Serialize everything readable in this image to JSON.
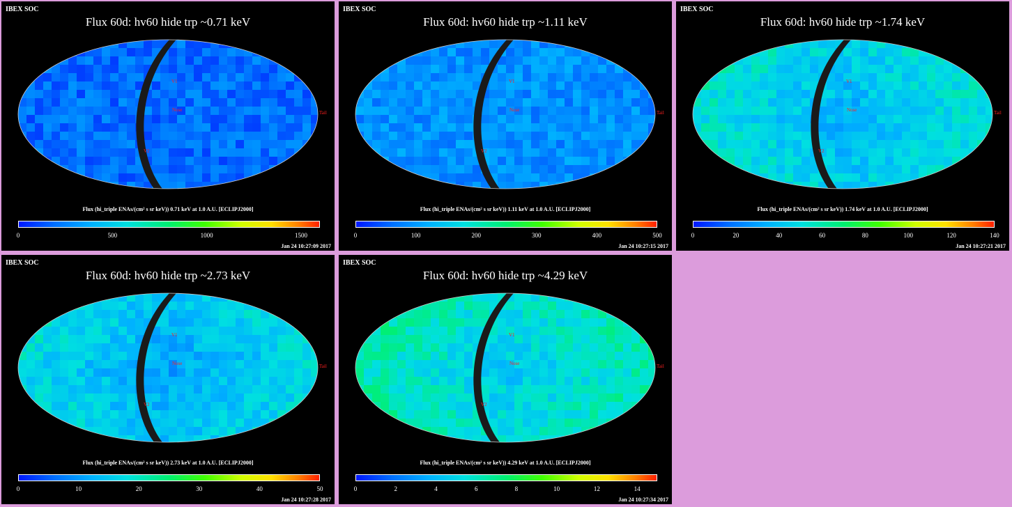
{
  "panels": [
    {
      "header": "IBEX SOC",
      "title": "Flux   60d: hv60 hide trp ~0.71 keV",
      "caption": "Flux (hi_triple ENAs/(cm² s sr keV))  0.71 keV at 1.0 A.U. [ECLIPJ2000]",
      "ticks": [
        "0",
        "500",
        "1000",
        "1500"
      ],
      "tick_values": [
        0,
        500,
        1000,
        1500
      ],
      "max": 1600,
      "date": "Jan 24 10:27:09 2017",
      "mean_level": 0.12
    },
    {
      "header": "IBEX SOC",
      "title": "Flux   60d: hv60 hide trp ~1.11 keV",
      "caption": "Flux (hi_triple ENAs/(cm² s sr keV))  1.11 keV at 1.0 A.U. [ECLIPJ2000]",
      "ticks": [
        "0",
        "100",
        "200",
        "300",
        "400",
        "500"
      ],
      "tick_values": [
        0,
        100,
        200,
        300,
        400,
        500
      ],
      "max": 500,
      "date": "Jan 24 10:27:15 2017",
      "mean_level": 0.18
    },
    {
      "header": "IBEX SOC",
      "title": "Flux   60d: hv60 hide trp ~1.74 keV",
      "caption": "Flux (hi_triple ENAs/(cm² s sr keV))  1.74 keV at 1.0 A.U. [ECLIPJ2000]",
      "ticks": [
        "0",
        "20",
        "40",
        "60",
        "80",
        "100",
        "120",
        "140"
      ],
      "tick_values": [
        0,
        20,
        40,
        60,
        80,
        100,
        120,
        140
      ],
      "max": 140,
      "date": "Jan 24 10:27:21 2017",
      "mean_level": 0.25
    },
    {
      "header": "IBEX SOC",
      "title": "Flux   60d: hv60 hide trp ~2.73 keV",
      "caption": "Flux (hi_triple ENAs/(cm² s sr keV))  2.73 keV at 1.0 A.U. [ECLIPJ2000]",
      "ticks": [
        "0",
        "10",
        "20",
        "30",
        "40",
        "50"
      ],
      "tick_values": [
        0,
        10,
        20,
        30,
        40,
        50
      ],
      "max": 50,
      "date": "Jan 24 10:27:28 2017",
      "mean_level": 0.22
    },
    {
      "header": "IBEX SOC",
      "title": "Flux   60d: hv60 hide trp ~4.29 keV",
      "caption": "Flux (hi_triple ENAs/(cm² s sr keV))  4.29 keV at 1.0 A.U. [ECLIPJ2000]",
      "ticks": [
        "0",
        "2",
        "4",
        "6",
        "8",
        "10",
        "12",
        "14"
      ],
      "tick_values": [
        0,
        2,
        4,
        6,
        8,
        10,
        12,
        14
      ],
      "max": 15,
      "date": "Jan 24 10:27:34 2017",
      "mean_level": 0.3
    }
  ],
  "chart_data": {
    "type": "heatmap",
    "projection": "Mollweide all-sky",
    "energies_keV": [
      0.71,
      1.11,
      1.74,
      2.73,
      4.29
    ],
    "map_labels": [
      "Nose",
      "Tail",
      "V1",
      "V2"
    ],
    "colors": {
      "background": "#000000",
      "page": "#dc9cdc",
      "text": "#ffffff",
      "grid": "#00c000",
      "marker": "#ff2020"
    }
  }
}
